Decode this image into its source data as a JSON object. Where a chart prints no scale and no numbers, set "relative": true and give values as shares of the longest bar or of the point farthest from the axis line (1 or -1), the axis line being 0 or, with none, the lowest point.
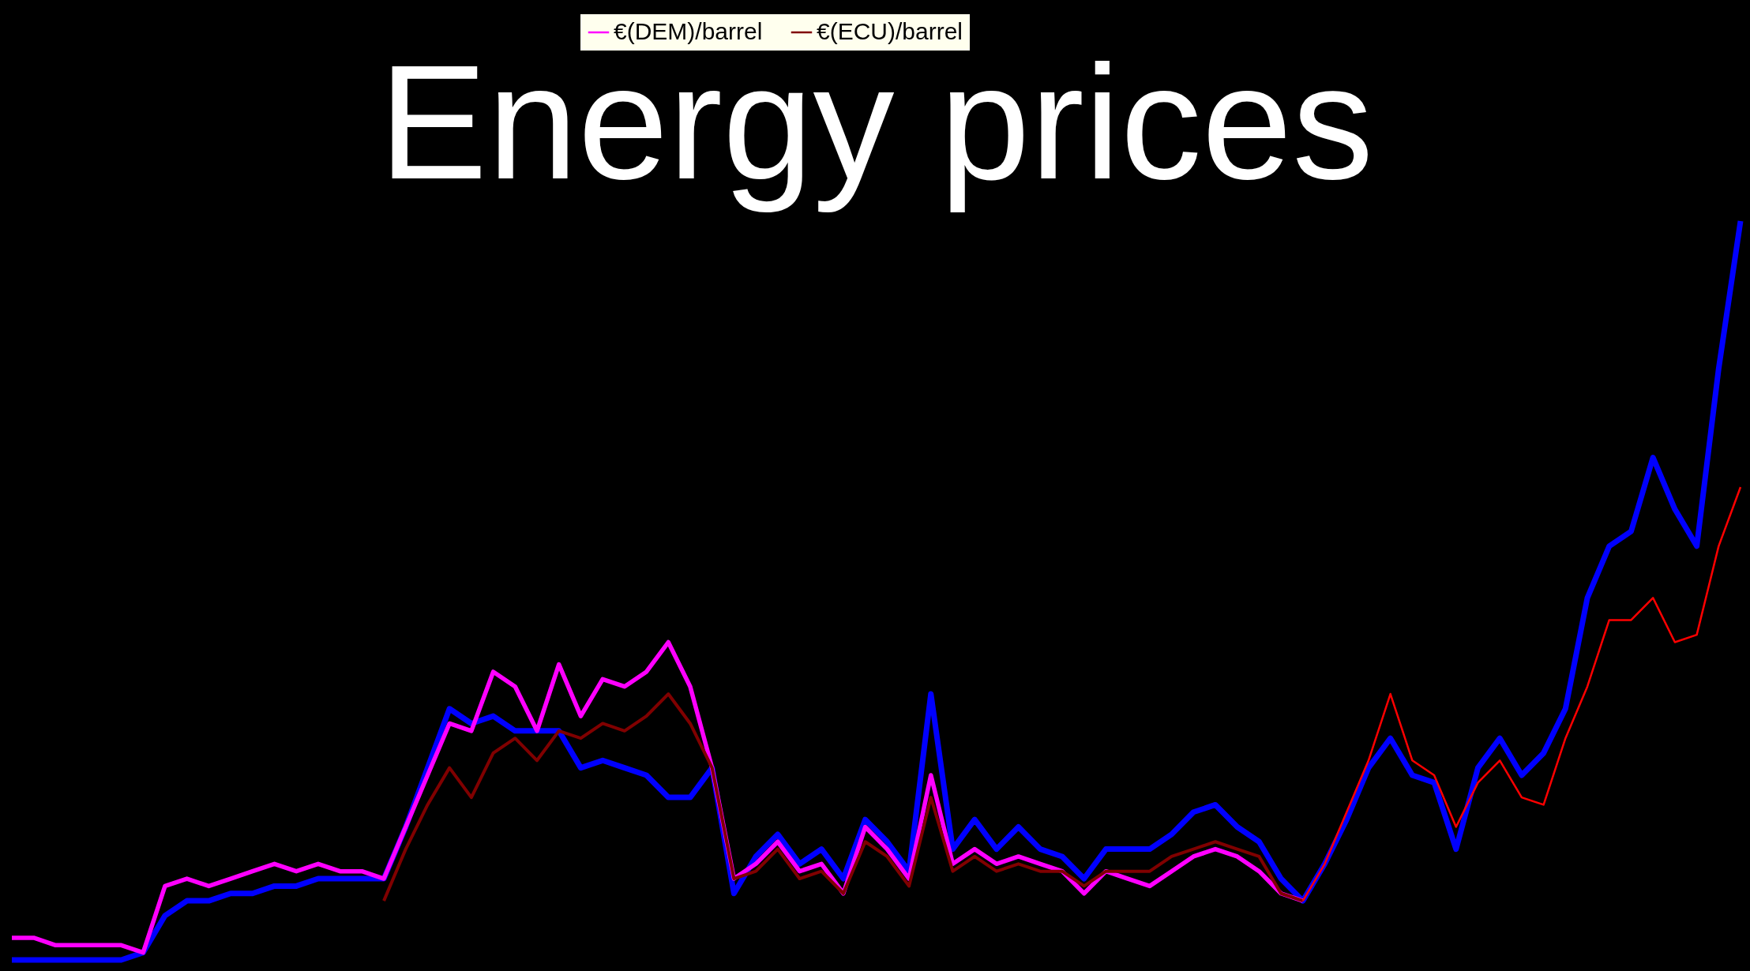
{
  "chart_data": {
    "type": "line",
    "title": "Energy prices",
    "relative": true,
    "legend": "top",
    "categories": [
      null,
      null,
      null,
      null,
      null,
      null,
      null,
      null,
      null,
      null,
      null,
      null,
      null,
      null,
      null,
      null,
      null,
      null,
      null,
      null,
      null,
      null,
      null,
      null,
      null,
      null,
      null,
      null,
      null,
      null,
      null,
      null,
      null,
      null,
      null,
      null,
      null,
      null,
      null,
      null,
      null,
      null,
      null,
      null,
      null,
      null,
      null,
      null,
      null,
      null,
      null,
      null,
      null,
      null,
      null,
      null,
      null,
      null,
      null,
      null,
      null,
      null,
      null,
      null,
      null,
      null,
      null,
      null,
      null,
      null,
      null,
      null,
      null,
      null,
      null,
      null,
      null,
      null,
      null,
      null
    ],
    "series": [
      {
        "color": "#0000ff",
        "values": [
          0,
          0,
          0,
          0,
          0,
          0,
          0.01,
          0.06,
          0.08,
          0.08,
          0.09,
          0.09,
          0.1,
          0.1,
          0.11,
          0.11,
          0.11,
          0.11,
          0.18,
          0.26,
          0.34,
          0.32,
          0.33,
          0.31,
          0.31,
          0.31,
          0.26,
          0.27,
          0.26,
          0.25,
          0.22,
          0.22,
          0.26,
          0.09,
          0.14,
          0.17,
          0.13,
          0.15,
          0.11,
          0.19,
          0.16,
          0.12,
          0.36,
          0.15,
          0.19,
          0.15,
          0.18,
          0.15,
          0.14,
          0.11,
          0.15,
          0.15,
          0.15,
          0.17,
          0.2,
          0.21,
          0.18,
          0.16,
          0.11,
          0.08,
          0.13,
          0.19,
          0.26,
          0.3,
          0.25,
          0.24,
          0.15,
          0.26,
          0.3,
          0.25,
          0.28,
          0.34,
          0.49,
          0.56,
          0.58,
          0.68,
          0.61,
          0.56,
          0.8,
          1
        ]
      },
      {
        "name": "€(DEM)/barrel",
        "color": "#ff00ff",
        "values": [
          0.03,
          0.03,
          0.02,
          0.02,
          0.02,
          0.02,
          0.01,
          0.1,
          0.11,
          0.1,
          0.11,
          0.12,
          0.13,
          0.12,
          0.13,
          0.12,
          0.12,
          0.11,
          0.18,
          0.25,
          0.32,
          0.31,
          0.39,
          0.37,
          0.31,
          0.4,
          0.33,
          0.38,
          0.37,
          0.39,
          0.43,
          0.37,
          0.26,
          0.11,
          0.13,
          0.16,
          0.12,
          0.13,
          0.09,
          0.18,
          0.15,
          0.11,
          0.25,
          0.13,
          0.15,
          0.13,
          0.14,
          0.13,
          0.12,
          0.09,
          0.12,
          0.11,
          0.1,
          0.12,
          0.14,
          0.15,
          0.14,
          0.12,
          0.09,
          0.08,
          null,
          null,
          null,
          null,
          null,
          null,
          null,
          null,
          null,
          null,
          null,
          null,
          null,
          null,
          null,
          null,
          null,
          null,
          null,
          null
        ]
      },
      {
        "name": "€(ECU)/barrel",
        "color": "#800000",
        "values": [
          null,
          null,
          null,
          null,
          null,
          null,
          null,
          null,
          null,
          null,
          null,
          null,
          null,
          null,
          null,
          null,
          null,
          0.08,
          0.15,
          0.21,
          0.26,
          0.22,
          0.28,
          0.3,
          0.27,
          0.31,
          0.3,
          0.32,
          0.31,
          0.33,
          0.36,
          0.32,
          0.26,
          0.11,
          0.12,
          0.15,
          0.11,
          0.12,
          0.09,
          0.16,
          0.14,
          0.1,
          0.22,
          0.12,
          0.14,
          0.12,
          0.13,
          0.12,
          0.12,
          0.1,
          0.12,
          0.12,
          0.12,
          0.14,
          0.15,
          0.16,
          0.15,
          0.14,
          0.09,
          0.08,
          null,
          null,
          null,
          null,
          null,
          null,
          null,
          null,
          null,
          null,
          null,
          null,
          null,
          null,
          null,
          null,
          null,
          null,
          null,
          null
        ]
      },
      {
        "color": "#ff0000",
        "values": [
          null,
          null,
          null,
          null,
          null,
          null,
          null,
          null,
          null,
          null,
          null,
          null,
          null,
          null,
          null,
          null,
          null,
          null,
          null,
          null,
          null,
          null,
          null,
          null,
          null,
          null,
          null,
          null,
          null,
          null,
          null,
          null,
          null,
          null,
          null,
          null,
          null,
          null,
          null,
          null,
          null,
          null,
          null,
          null,
          null,
          null,
          null,
          null,
          null,
          null,
          null,
          null,
          null,
          null,
          null,
          null,
          null,
          null,
          null,
          0.08,
          0.13,
          0.2,
          0.27,
          0.36,
          0.27,
          0.25,
          0.18,
          0.24,
          0.27,
          0.22,
          0.21,
          0.3,
          0.37,
          0.46,
          0.46,
          0.49,
          0.43,
          0.44,
          0.56,
          0.64
        ]
      }
    ]
  }
}
